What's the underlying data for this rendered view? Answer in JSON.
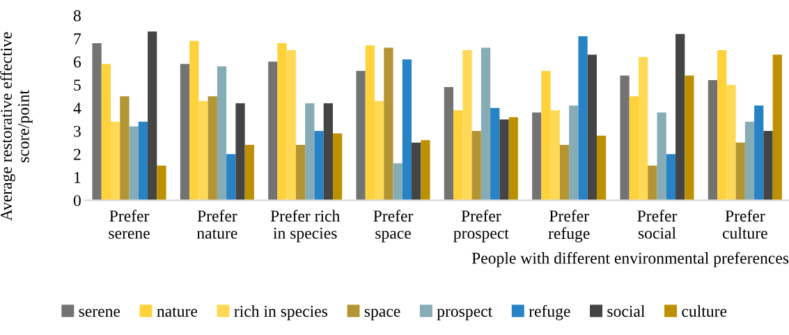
{
  "chart_data": {
    "type": "bar",
    "xlabel": "People with different environmental preferences",
    "ylabel": "Average restorative effective score/point",
    "categories": [
      "Prefer\nserene",
      "Prefer\nnature",
      "Prefer rich\nin species",
      "Prefer\nspace",
      "Prefer\nprospect",
      "Prefer\nrefuge",
      "Prefer\nsocial",
      "Prefer\nculture"
    ],
    "series": [
      {
        "name": "serene",
        "color": "#737373",
        "values": [
          6.8,
          5.9,
          6.0,
          5.6,
          4.9,
          3.8,
          5.4,
          5.2
        ]
      },
      {
        "name": "nature",
        "color": "#ffd23c",
        "values": [
          5.9,
          6.9,
          6.8,
          6.7,
          3.9,
          5.6,
          4.5,
          6.5
        ]
      },
      {
        "name": "rich in species",
        "color": "#ffd956",
        "values": [
          3.4,
          4.3,
          6.5,
          4.3,
          6.5,
          3.9,
          6.2,
          5.0
        ]
      },
      {
        "name": "space",
        "color": "#b39533",
        "values": [
          4.5,
          4.5,
          2.4,
          6.6,
          3.0,
          2.4,
          1.5,
          2.5
        ]
      },
      {
        "name": "prospect",
        "color": "#86acb6",
        "values": [
          3.2,
          5.8,
          4.2,
          1.6,
          6.6,
          4.1,
          3.8,
          3.4
        ]
      },
      {
        "name": "refuge",
        "color": "#2783c6",
        "values": [
          3.4,
          2.0,
          3.0,
          6.1,
          4.0,
          7.1,
          2.0,
          4.1
        ]
      },
      {
        "name": "social",
        "color": "#444444",
        "values": [
          7.3,
          4.2,
          4.2,
          2.5,
          3.5,
          6.3,
          7.2,
          3.0
        ]
      },
      {
        "name": "culture",
        "color": "#bd9000",
        "values": [
          1.5,
          2.4,
          2.9,
          2.6,
          3.6,
          2.8,
          5.4,
          6.3
        ]
      }
    ],
    "ylim": [
      0,
      8
    ],
    "yticks": [
      0,
      1,
      2,
      3,
      4,
      5,
      6,
      7,
      8
    ],
    "grid": false,
    "legend": "bottom"
  }
}
